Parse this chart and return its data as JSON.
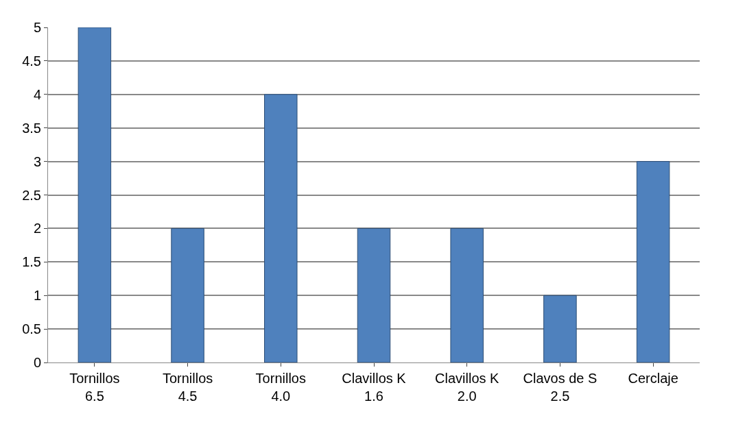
{
  "chart_data": {
    "type": "bar",
    "categories": [
      "Tornillos 6.5",
      "Tornillos 4.5",
      "Tornillos 4.0",
      "Clavillos K 1.6",
      "Clavillos K 2.0",
      "Clavos de S 2.5",
      "Cerclaje"
    ],
    "values": [
      5,
      2,
      4,
      2,
      2,
      1,
      3
    ],
    "color": "#4f81bd",
    "ylim": [
      0,
      5
    ],
    "yticks": [
      0,
      0.5,
      1,
      1.5,
      2,
      2.5,
      3,
      3.5,
      4,
      4.5,
      5
    ],
    "grid": "y"
  }
}
